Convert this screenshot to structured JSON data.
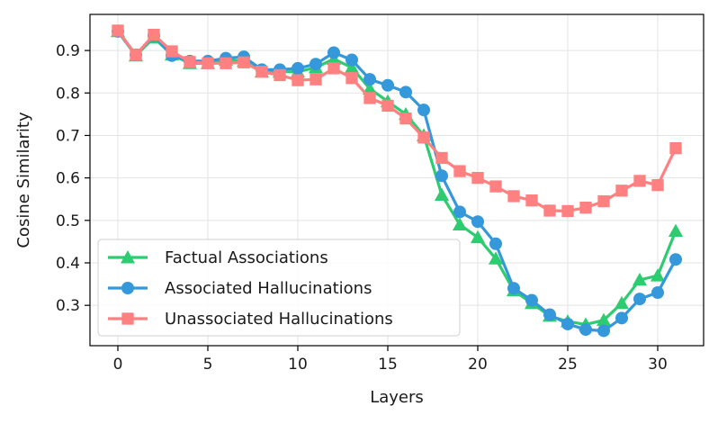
{
  "chart_data": {
    "type": "line",
    "title": "",
    "xlabel": "Layers",
    "ylabel": "Cosine Similarity",
    "xlim": [
      -1.55,
      32.55
    ],
    "ylim": [
      0.205,
      0.985
    ],
    "xticks": [
      0,
      5,
      10,
      15,
      20,
      25,
      30
    ],
    "yticks": [
      0.3,
      0.4,
      0.5,
      0.6,
      0.7,
      0.8,
      0.9
    ],
    "grid": true,
    "legend_position": "lower-left",
    "x": [
      0,
      1,
      2,
      3,
      4,
      5,
      6,
      7,
      8,
      9,
      10,
      11,
      12,
      13,
      14,
      15,
      16,
      17,
      18,
      19,
      20,
      21,
      22,
      23,
      24,
      25,
      26,
      27,
      28,
      29,
      30,
      31
    ],
    "series": [
      {
        "name": "Factual Associations",
        "color": "#2ecc71",
        "marker": "triangle",
        "values": [
          0.945,
          0.888,
          0.93,
          0.89,
          0.87,
          0.87,
          0.878,
          0.875,
          0.85,
          0.85,
          0.85,
          0.86,
          0.88,
          0.86,
          0.81,
          0.78,
          0.75,
          0.7,
          0.56,
          0.49,
          0.46,
          0.41,
          0.335,
          0.305,
          0.275,
          0.262,
          0.255,
          0.265,
          0.305,
          0.36,
          0.37,
          0.475
        ]
      },
      {
        "name": "Associated Hallucinations",
        "color": "#3498db",
        "marker": "circle",
        "values": [
          0.945,
          0.89,
          0.935,
          0.888,
          0.875,
          0.875,
          0.882,
          0.885,
          0.855,
          0.855,
          0.858,
          0.868,
          0.895,
          0.878,
          0.832,
          0.818,
          0.802,
          0.76,
          0.605,
          0.52,
          0.497,
          0.445,
          0.34,
          0.312,
          0.278,
          0.256,
          0.243,
          0.24,
          0.27,
          0.315,
          0.33,
          0.408
        ]
      },
      {
        "name": "Unassociated Hallucinations",
        "color": "#ff8080",
        "marker": "square",
        "values": [
          0.947,
          0.89,
          0.937,
          0.898,
          0.873,
          0.87,
          0.87,
          0.872,
          0.85,
          0.842,
          0.83,
          0.832,
          0.858,
          0.835,
          0.788,
          0.77,
          0.74,
          0.695,
          0.647,
          0.616,
          0.6,
          0.58,
          0.557,
          0.547,
          0.523,
          0.522,
          0.53,
          0.545,
          0.57,
          0.593,
          0.583,
          0.67
        ]
      }
    ]
  }
}
